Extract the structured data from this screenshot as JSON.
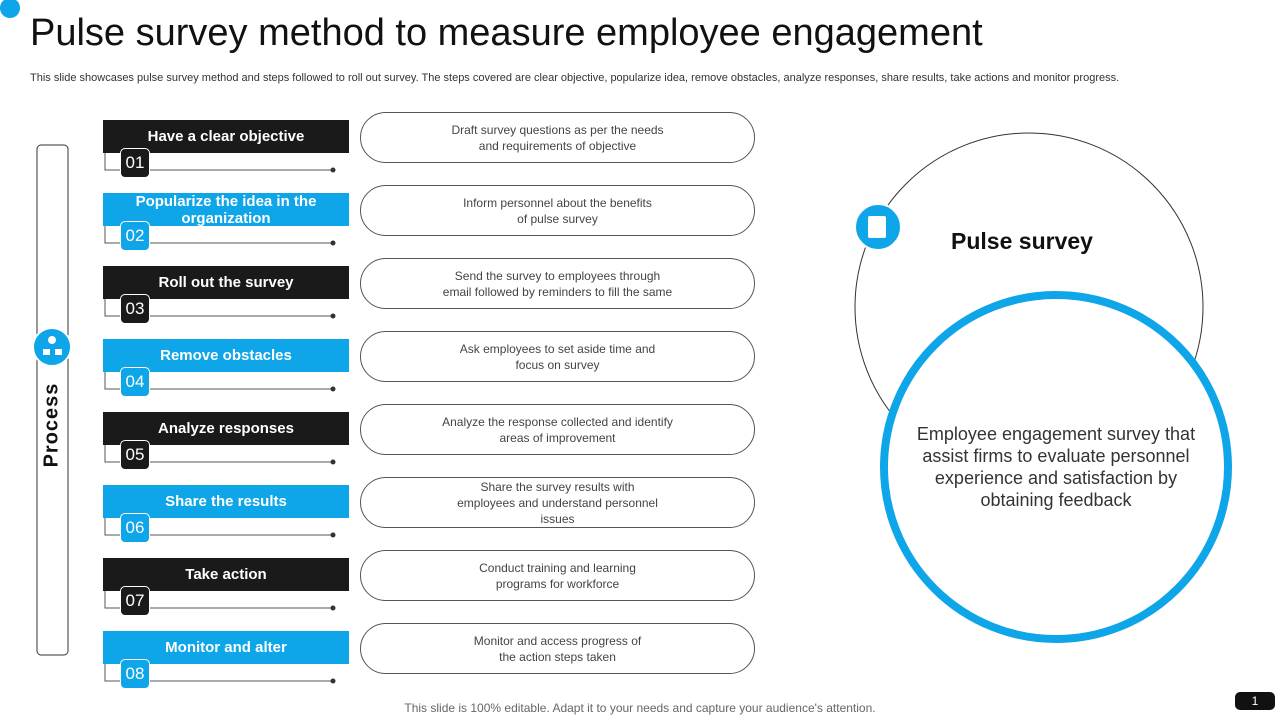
{
  "header": {
    "title": "Pulse survey method to measure employee engagement",
    "subtitle": "This slide showcases pulse survey method and steps followed to roll out survey.  The steps covered are clear objective, popularize idea, remove obstacles, analyze responses, share results, take actions and monitor progress."
  },
  "process_label": "Process",
  "steps": [
    {
      "label": "Have  a clear objective",
      "number": "01",
      "description": [
        "Draft survey questions as per the needs",
        "and requirements of objective"
      ]
    },
    {
      "label": "Popularize the idea in the organization",
      "number": "02",
      "description": [
        "Inform personnel about the benefits",
        "of pulse survey"
      ]
    },
    {
      "label": "Roll out the survey",
      "number": "03",
      "description": [
        "Send the survey to employees through",
        "email followed  by reminders to fill the same"
      ]
    },
    {
      "label": "Remove obstacles",
      "number": "04",
      "description": [
        "Ask employees to set aside time and",
        "focus on survey"
      ]
    },
    {
      "label": "Analyze responses",
      "number": "05",
      "description": [
        "Analyze the response collected and identify",
        "areas of improvement"
      ]
    },
    {
      "label": "Share the results",
      "number": "06",
      "description": [
        "Share the survey results with",
        "employees and understand personnel",
        "issues"
      ]
    },
    {
      "label": "Take action",
      "number": "07",
      "description": [
        "Conduct training and learning",
        "programs for workforce"
      ]
    },
    {
      "label": "Monitor and alter",
      "number": "08",
      "description": [
        "Monitor and access progress of",
        "the action steps taken"
      ]
    }
  ],
  "circle": {
    "title": "Pulse survey",
    "text": "Employee engagement survey that assist firms to evaluate personnel experience and satisfaction by obtaining feedback"
  },
  "footer": {
    "note": "This slide is 100% editable. Adapt it to your needs and capture your audience's attention.",
    "page": "1"
  }
}
